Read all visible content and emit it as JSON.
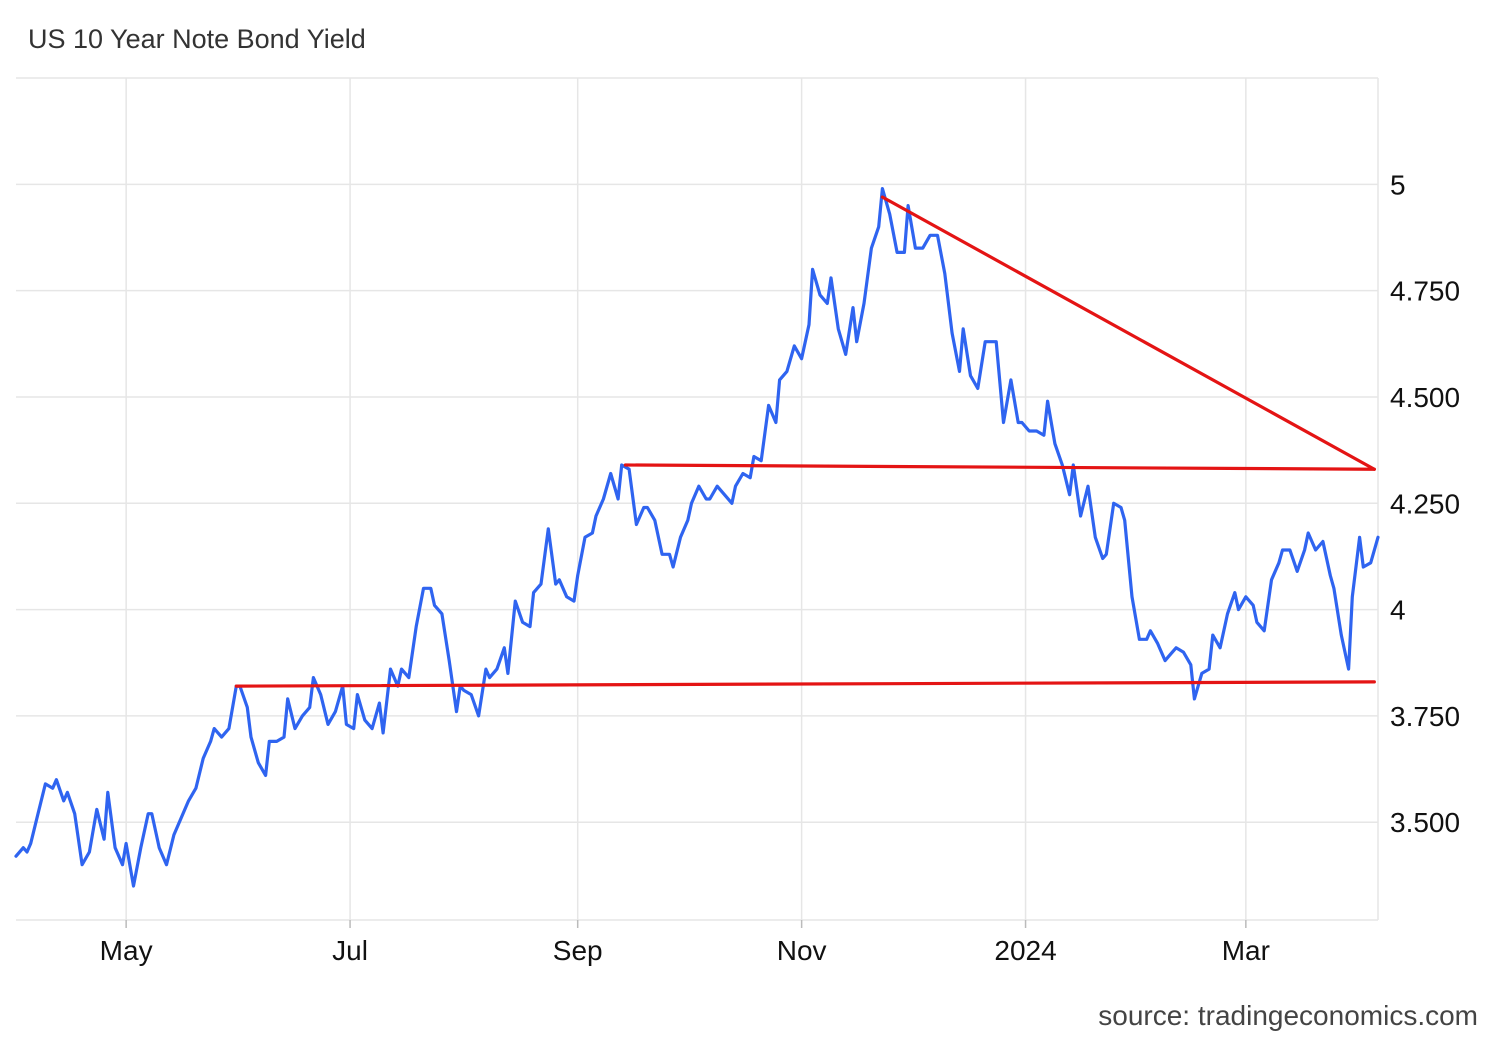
{
  "chart_data": {
    "type": "line",
    "title": "US 10 Year Note Bond Yield",
    "source": "source: tradingeconomics.com",
    "xlabel": "",
    "ylabel": "",
    "ylim": [
      3.27,
      5.25
    ],
    "y_ticks": [
      3.5,
      3.75,
      4,
      4.25,
      4.5,
      4.75,
      5
    ],
    "y_tick_labels": [
      "3.500",
      "3.750",
      "4",
      "4.250",
      "4.500",
      "4.750",
      "5"
    ],
    "x_range": [
      "2023-04-01",
      "2024-04-06"
    ],
    "x_ticks": [
      "2023-05-01",
      "2023-07-01",
      "2023-09-01",
      "2023-11-01",
      "2024-01-01",
      "2024-03-01"
    ],
    "x_tick_labels": [
      "May",
      "Jul",
      "Sep",
      "Nov",
      "2024",
      "Mar"
    ],
    "grid": true,
    "colors": {
      "line": "#2f64f0",
      "trend": "#e41414",
      "grid": "#e6e6e6"
    },
    "series": [
      {
        "points": [
          [
            "2023-04-01",
            3.42
          ],
          [
            "2023-04-03",
            3.44
          ],
          [
            "2023-04-04",
            3.43
          ],
          [
            "2023-04-05",
            3.45
          ],
          [
            "2023-04-07",
            3.52
          ],
          [
            "2023-04-09",
            3.59
          ],
          [
            "2023-04-11",
            3.58
          ],
          [
            "2023-04-12",
            3.6
          ],
          [
            "2023-04-14",
            3.55
          ],
          [
            "2023-04-15",
            3.57
          ],
          [
            "2023-04-17",
            3.52
          ],
          [
            "2023-04-19",
            3.4
          ],
          [
            "2023-04-21",
            3.43
          ],
          [
            "2023-04-23",
            3.53
          ],
          [
            "2023-04-25",
            3.46
          ],
          [
            "2023-04-26",
            3.57
          ],
          [
            "2023-04-28",
            3.44
          ],
          [
            "2023-04-30",
            3.4
          ],
          [
            "2023-05-01",
            3.45
          ],
          [
            "2023-05-03",
            3.35
          ],
          [
            "2023-05-05",
            3.44
          ],
          [
            "2023-05-07",
            3.52
          ],
          [
            "2023-05-08",
            3.52
          ],
          [
            "2023-05-10",
            3.44
          ],
          [
            "2023-05-12",
            3.4
          ],
          [
            "2023-05-14",
            3.47
          ],
          [
            "2023-05-16",
            3.51
          ],
          [
            "2023-05-18",
            3.55
          ],
          [
            "2023-05-20",
            3.58
          ],
          [
            "2023-05-22",
            3.65
          ],
          [
            "2023-05-24",
            3.69
          ],
          [
            "2023-05-25",
            3.72
          ],
          [
            "2023-05-27",
            3.7
          ],
          [
            "2023-05-29",
            3.72
          ],
          [
            "2023-05-31",
            3.82
          ],
          [
            "2023-06-01",
            3.82
          ],
          [
            "2023-06-03",
            3.77
          ],
          [
            "2023-06-04",
            3.7
          ],
          [
            "2023-06-06",
            3.64
          ],
          [
            "2023-06-08",
            3.61
          ],
          [
            "2023-06-09",
            3.69
          ],
          [
            "2023-06-11",
            3.69
          ],
          [
            "2023-06-13",
            3.7
          ],
          [
            "2023-06-14",
            3.79
          ],
          [
            "2023-06-16",
            3.72
          ],
          [
            "2023-06-18",
            3.75
          ],
          [
            "2023-06-20",
            3.77
          ],
          [
            "2023-06-21",
            3.84
          ],
          [
            "2023-06-23",
            3.8
          ],
          [
            "2023-06-25",
            3.73
          ],
          [
            "2023-06-27",
            3.76
          ],
          [
            "2023-06-29",
            3.82
          ],
          [
            "2023-06-30",
            3.73
          ],
          [
            "2023-07-02",
            3.72
          ],
          [
            "2023-07-03",
            3.8
          ],
          [
            "2023-07-05",
            3.74
          ],
          [
            "2023-07-07",
            3.72
          ],
          [
            "2023-07-09",
            3.78
          ],
          [
            "2023-07-10",
            3.71
          ],
          [
            "2023-07-12",
            3.86
          ],
          [
            "2023-07-14",
            3.82
          ],
          [
            "2023-07-15",
            3.86
          ],
          [
            "2023-07-17",
            3.84
          ],
          [
            "2023-07-19",
            3.96
          ],
          [
            "2023-07-21",
            4.05
          ],
          [
            "2023-07-23",
            4.05
          ],
          [
            "2023-07-24",
            4.01
          ],
          [
            "2023-07-26",
            3.99
          ],
          [
            "2023-07-28",
            3.88
          ],
          [
            "2023-07-30",
            3.76
          ],
          [
            "2023-07-31",
            3.82
          ],
          [
            "2023-08-01",
            3.81
          ],
          [
            "2023-08-03",
            3.8
          ],
          [
            "2023-08-05",
            3.75
          ],
          [
            "2023-08-07",
            3.86
          ],
          [
            "2023-08-08",
            3.84
          ],
          [
            "2023-08-10",
            3.86
          ],
          [
            "2023-08-12",
            3.91
          ],
          [
            "2023-08-13",
            3.85
          ],
          [
            "2023-08-15",
            4.02
          ],
          [
            "2023-08-17",
            3.97
          ],
          [
            "2023-08-19",
            3.96
          ],
          [
            "2023-08-20",
            4.04
          ],
          [
            "2023-08-22",
            4.06
          ],
          [
            "2023-08-24",
            4.19
          ],
          [
            "2023-08-26",
            4.06
          ],
          [
            "2023-08-27",
            4.07
          ],
          [
            "2023-08-29",
            4.03
          ],
          [
            "2023-08-31",
            4.02
          ],
          [
            "2023-09-01",
            4.08
          ],
          [
            "2023-09-03",
            4.17
          ],
          [
            "2023-09-05",
            4.18
          ],
          [
            "2023-09-06",
            4.22
          ],
          [
            "2023-09-08",
            4.26
          ],
          [
            "2023-09-10",
            4.32
          ],
          [
            "2023-09-12",
            4.26
          ],
          [
            "2023-09-13",
            4.34
          ],
          [
            "2023-09-15",
            4.33
          ],
          [
            "2023-09-17",
            4.2
          ],
          [
            "2023-09-19",
            4.24
          ],
          [
            "2023-09-20",
            4.24
          ],
          [
            "2023-09-22",
            4.21
          ],
          [
            "2023-09-24",
            4.13
          ],
          [
            "2023-09-26",
            4.13
          ],
          [
            "2023-09-27",
            4.1
          ],
          [
            "2023-09-29",
            4.17
          ],
          [
            "2023-10-01",
            4.21
          ],
          [
            "2023-10-02",
            4.25
          ],
          [
            "2023-10-04",
            4.29
          ],
          [
            "2023-10-06",
            4.26
          ],
          [
            "2023-10-07",
            4.26
          ],
          [
            "2023-10-09",
            4.29
          ],
          [
            "2023-10-11",
            4.27
          ],
          [
            "2023-10-13",
            4.25
          ],
          [
            "2023-10-14",
            4.29
          ],
          [
            "2023-10-16",
            4.32
          ],
          [
            "2023-10-18",
            4.31
          ],
          [
            "2023-10-19",
            4.36
          ],
          [
            "2023-10-21",
            4.35
          ],
          [
            "2023-10-23",
            4.48
          ],
          [
            "2023-10-25",
            4.44
          ],
          [
            "2023-10-26",
            4.54
          ],
          [
            "2023-10-28",
            4.56
          ],
          [
            "2023-10-30",
            4.62
          ],
          [
            "2023-11-01",
            4.59
          ],
          [
            "2023-11-03",
            4.67
          ],
          [
            "2023-11-04",
            4.8
          ],
          [
            "2023-11-06",
            4.74
          ],
          [
            "2023-11-08",
            4.72
          ],
          [
            "2023-11-09",
            4.78
          ],
          [
            "2023-11-11",
            4.66
          ],
          [
            "2023-11-13",
            4.6
          ],
          [
            "2023-11-15",
            4.71
          ],
          [
            "2023-11-16",
            4.63
          ],
          [
            "2023-11-18",
            4.72
          ],
          [
            "2023-11-20",
            4.85
          ],
          [
            "2023-11-22",
            4.9
          ],
          [
            "2023-11-23",
            4.99
          ],
          [
            "2023-11-25",
            4.93
          ],
          [
            "2023-11-27",
            4.84
          ],
          [
            "2023-11-29",
            4.84
          ],
          [
            "2023-11-30",
            4.95
          ],
          [
            "2023-12-02",
            4.85
          ],
          [
            "2023-12-04",
            4.85
          ],
          [
            "2023-12-06",
            4.88
          ],
          [
            "2023-12-08",
            4.88
          ],
          [
            "2023-12-10",
            4.79
          ],
          [
            "2023-12-12",
            4.65
          ],
          [
            "2023-12-14",
            4.56
          ],
          [
            "2023-12-15",
            4.66
          ],
          [
            "2023-12-17",
            4.55
          ],
          [
            "2023-12-19",
            4.52
          ],
          [
            "2023-12-21",
            4.63
          ],
          [
            "2023-12-23",
            4.63
          ],
          [
            "2023-12-24",
            4.63
          ],
          [
            "2023-12-26",
            4.44
          ],
          [
            "2023-12-28",
            4.54
          ],
          [
            "2023-12-30",
            4.44
          ],
          [
            "2023-12-31",
            4.44
          ],
          [
            "2024-01-02",
            4.42
          ],
          [
            "2024-01-04",
            4.42
          ],
          [
            "2024-01-06",
            4.41
          ],
          [
            "2024-01-07",
            4.49
          ],
          [
            "2024-01-09",
            4.39
          ],
          [
            "2024-01-11",
            4.34
          ],
          [
            "2024-01-13",
            4.27
          ],
          [
            "2024-01-14",
            4.34
          ],
          [
            "2024-01-16",
            4.22
          ],
          [
            "2024-01-18",
            4.29
          ],
          [
            "2024-01-20",
            4.17
          ],
          [
            "2024-01-22",
            4.12
          ],
          [
            "2024-01-23",
            4.13
          ],
          [
            "2024-01-25",
            4.25
          ],
          [
            "2024-01-27",
            4.24
          ],
          [
            "2024-01-28",
            4.21
          ],
          [
            "2024-01-30",
            4.03
          ],
          [
            "2024-02-01",
            3.93
          ],
          [
            "2024-02-03",
            3.93
          ],
          [
            "2024-02-04",
            3.95
          ],
          [
            "2024-02-06",
            3.92
          ],
          [
            "2024-02-08",
            3.88
          ],
          [
            "2024-02-09",
            3.89
          ],
          [
            "2024-02-11",
            3.91
          ],
          [
            "2024-02-13",
            3.9
          ],
          [
            "2024-02-15",
            3.87
          ],
          [
            "2024-02-16",
            3.79
          ],
          [
            "2024-02-18",
            3.85
          ],
          [
            "2024-02-20",
            3.86
          ],
          [
            "2024-02-21",
            3.94
          ],
          [
            "2024-02-23",
            3.91
          ],
          [
            "2024-02-25",
            3.99
          ],
          [
            "2024-02-27",
            4.04
          ],
          [
            "2024-02-28",
            4.0
          ],
          [
            "2024-03-01",
            4.03
          ],
          [
            "2024-03-03",
            4.01
          ],
          [
            "2024-03-04",
            3.97
          ],
          [
            "2024-03-06",
            3.95
          ],
          [
            "2024-03-08",
            4.07
          ],
          [
            "2024-03-10",
            4.11
          ],
          [
            "2024-03-11",
            4.14
          ],
          [
            "2024-03-13",
            4.14
          ],
          [
            "2024-03-15",
            4.09
          ],
          [
            "2024-03-17",
            4.14
          ],
          [
            "2024-03-18",
            4.18
          ],
          [
            "2024-03-20",
            4.14
          ],
          [
            "2024-03-22",
            4.16
          ],
          [
            "2024-03-24",
            4.08
          ],
          [
            "2024-03-25",
            4.05
          ],
          [
            "2024-03-27",
            3.94
          ],
          [
            "2024-03-29",
            3.86
          ],
          [
            "2024-03-30",
            4.03
          ],
          [
            "2024-04-01",
            4.17
          ],
          [
            "2024-04-02",
            4.1
          ],
          [
            "2024-04-04",
            4.11
          ],
          [
            "2024-04-06",
            4.17
          ]
        ]
      }
    ],
    "trend_lines": [
      {
        "from": [
          "2023-11-23",
          4.97
        ],
        "to": [
          "2024-04-05",
          4.33
        ]
      },
      {
        "from": [
          "2023-09-14",
          4.34
        ],
        "to": [
          "2024-04-05",
          4.33
        ]
      },
      {
        "from": [
          "2023-05-31",
          3.82
        ],
        "to": [
          "2024-04-05",
          3.83
        ]
      }
    ]
  }
}
